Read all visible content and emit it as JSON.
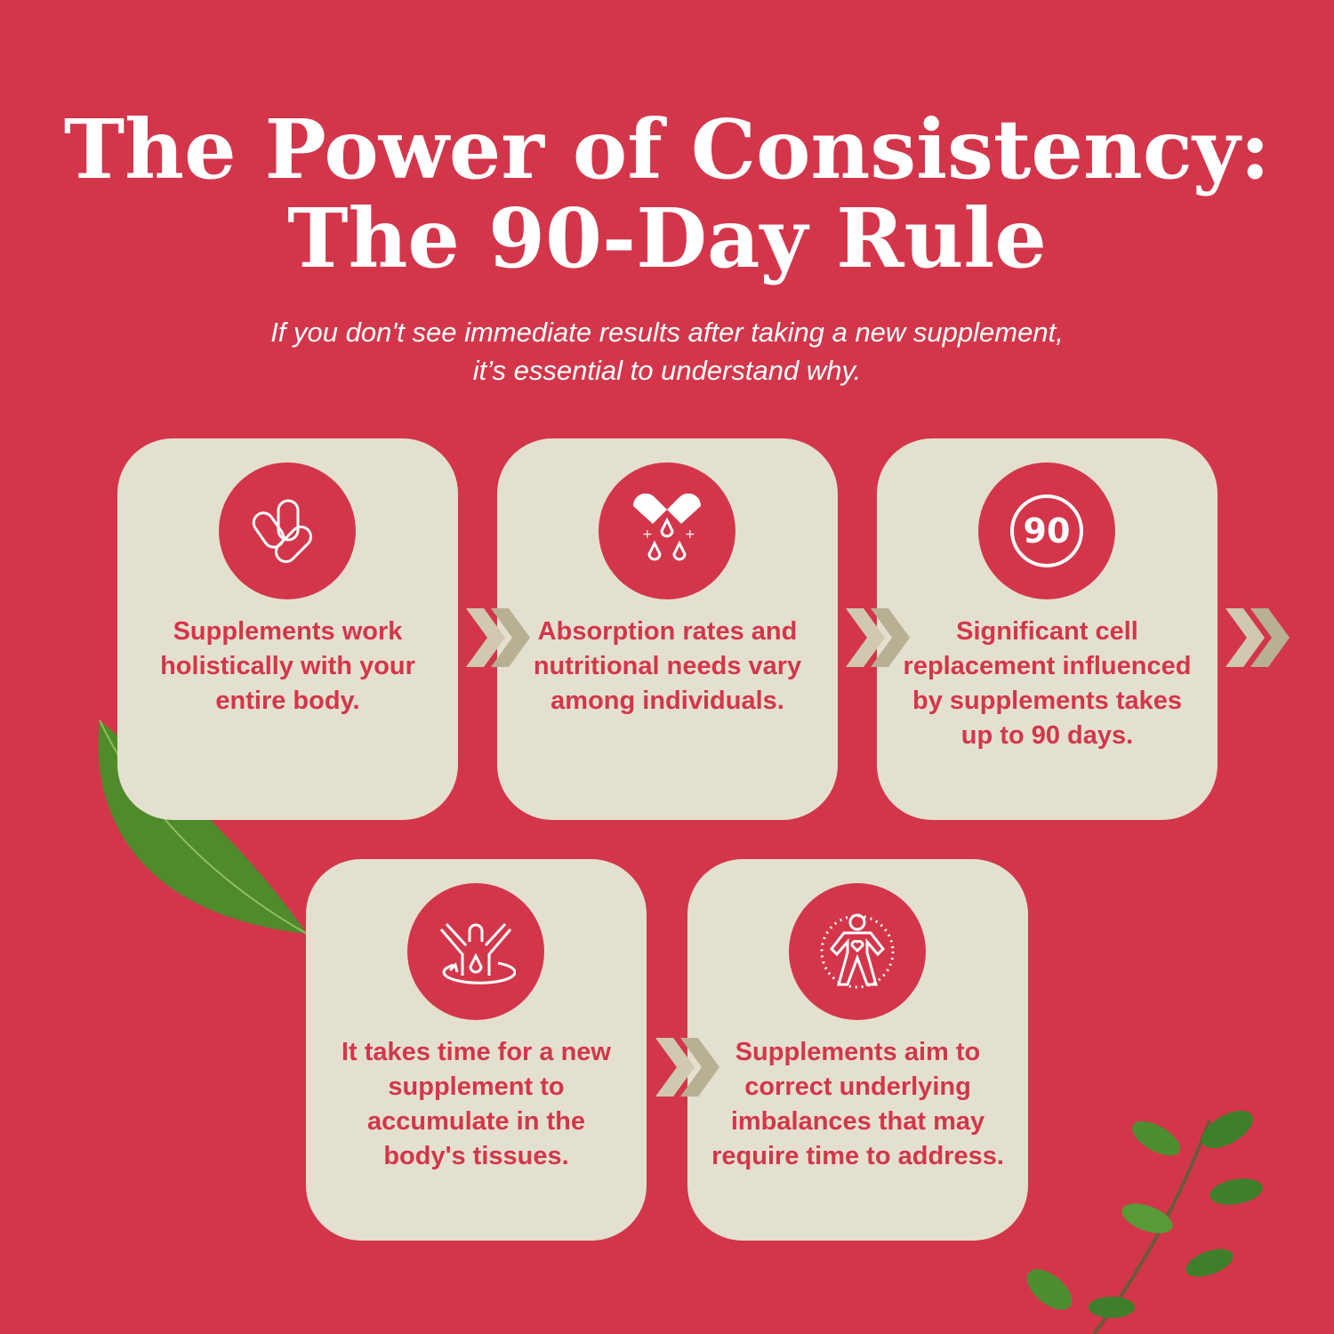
{
  "header": {
    "title_line1": "The Power of Consistency:",
    "title_line2": "The 90-Day Rule",
    "subtitle_line1": "If you don't see immediate results after taking a new supplement,",
    "subtitle_line2": "it’s essential to understand why."
  },
  "colors": {
    "background": "#d3364a",
    "card": "#e4e0cf",
    "accent": "#d3364a",
    "chevron_light": "#d0c9b0",
    "chevron_dark": "#b8b092"
  },
  "steps": [
    {
      "icon": "pills-icon",
      "text": "Supplements work holistically with your entire body."
    },
    {
      "icon": "capsule-drops-icon",
      "text": "Absorption rates and nutritional needs vary among individuals."
    },
    {
      "icon": "ninety-badge-icon",
      "icon_text": "90",
      "text": "Significant cell replacement influenced by supplements takes up to 90 days."
    },
    {
      "icon": "body-absorption-icon",
      "text": "It takes time for a new supplement to accumulate in the body's tissues."
    },
    {
      "icon": "body-heart-icon",
      "text": "Supplements aim to correct underlying imbalances that may require time to address."
    }
  ]
}
